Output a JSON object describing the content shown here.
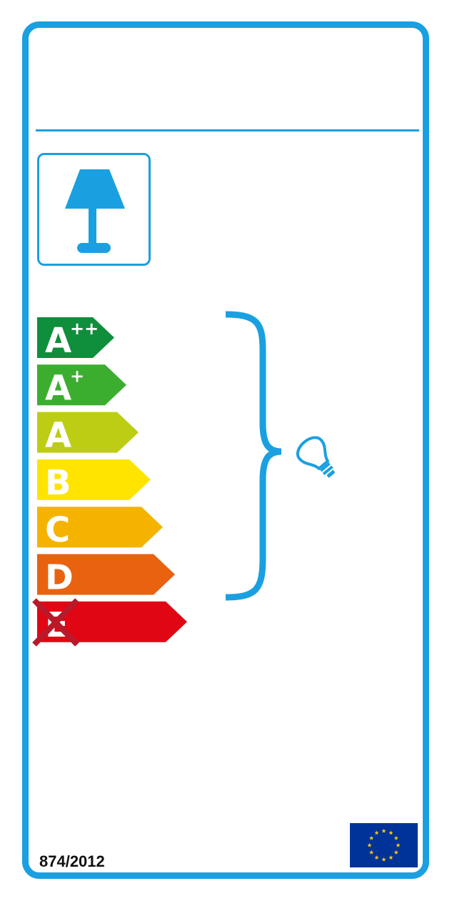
{
  "regulation": "874/2012",
  "classes": [
    {
      "letter": "A",
      "sup": "++",
      "color": "#0f8e3c"
    },
    {
      "letter": "A",
      "sup": "+",
      "color": "#3cae2f"
    },
    {
      "letter": "A",
      "sup": "",
      "color": "#bccd14"
    },
    {
      "letter": "B",
      "sup": "",
      "color": "#ffe400"
    },
    {
      "letter": "C",
      "sup": "",
      "color": "#f5b300"
    },
    {
      "letter": "D",
      "sup": "",
      "color": "#e8620f"
    },
    {
      "letter": "E",
      "sup": "",
      "color": "#e10613"
    }
  ],
  "excluded_class_index": 6,
  "compatible_range": [
    "A++",
    "D"
  ],
  "icons": {
    "luminaire": "table-lamp-icon",
    "bulb": "light-bulb-icon",
    "brace": "range-brace",
    "excluded_mark": "cross-out-icon",
    "flag": "eu-flag-icon"
  },
  "colors": {
    "frame": "#1aa0e0",
    "cross": "#b81a2b",
    "flag_blue": "#003399",
    "flag_star": "#ffcc00"
  }
}
